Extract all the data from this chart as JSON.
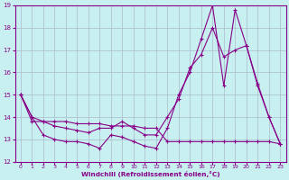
{
  "title": "",
  "xlabel": "Windchill (Refroidissement éolien,°C)",
  "ylabel": "",
  "bg_color": "#c8f0f0",
  "line_color": "#880088",
  "grid_color": "#aabbcc",
  "xlim": [
    -0.5,
    23.5
  ],
  "ylim": [
    12,
    19
  ],
  "xticks": [
    0,
    1,
    2,
    3,
    4,
    5,
    6,
    7,
    8,
    9,
    10,
    11,
    12,
    13,
    14,
    15,
    16,
    17,
    18,
    19,
    20,
    21,
    22,
    23
  ],
  "yticks": [
    12,
    13,
    14,
    15,
    16,
    17,
    18,
    19
  ],
  "series1_x": [
    0,
    1,
    2,
    3,
    4,
    5,
    6,
    7,
    8,
    9,
    10,
    11,
    12,
    13,
    14,
    15,
    16,
    17,
    18,
    19,
    20,
    21,
    22,
    23
  ],
  "series1_y": [
    15.0,
    14.0,
    13.2,
    13.0,
    12.9,
    12.9,
    12.8,
    12.6,
    13.2,
    13.1,
    12.9,
    12.7,
    12.6,
    13.5,
    15.0,
    16.0,
    17.5,
    19.0,
    15.4,
    18.8,
    17.2,
    15.4,
    14.0,
    12.8
  ],
  "series2_x": [
    0,
    1,
    2,
    3,
    4,
    5,
    6,
    7,
    8,
    9,
    10,
    11,
    12,
    13,
    14,
    15,
    16,
    17,
    18,
    19,
    20,
    21,
    22,
    23
  ],
  "series2_y": [
    15.0,
    14.0,
    13.8,
    13.6,
    13.5,
    13.4,
    13.3,
    13.5,
    13.5,
    13.8,
    13.5,
    13.2,
    13.2,
    14.0,
    14.8,
    16.2,
    16.8,
    18.0,
    16.7,
    17.0,
    17.2,
    15.5,
    14.0,
    12.8
  ],
  "series3_x": [
    0,
    1,
    2,
    3,
    4,
    5,
    6,
    7,
    8,
    9,
    10,
    11,
    12,
    13,
    14,
    15,
    16,
    17,
    18,
    19,
    20,
    21,
    22,
    23
  ],
  "series3_y": [
    15.0,
    13.8,
    13.8,
    13.8,
    13.8,
    13.7,
    13.7,
    13.7,
    13.6,
    13.6,
    13.6,
    13.5,
    13.5,
    12.9,
    12.9,
    12.9,
    12.9,
    12.9,
    12.9,
    12.9,
    12.9,
    12.9,
    12.9,
    12.8
  ]
}
